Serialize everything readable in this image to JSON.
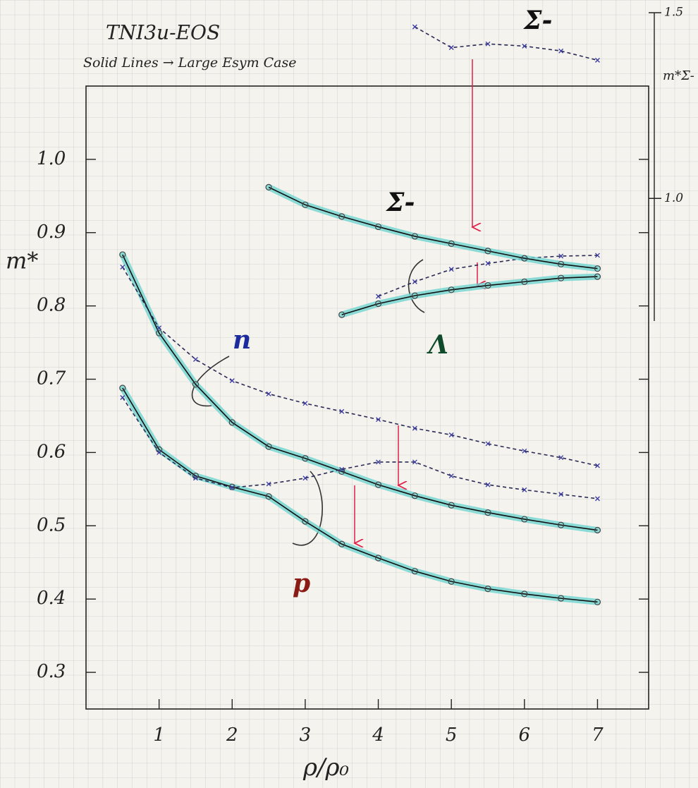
{
  "chart_data": {
    "type": "line",
    "title": "TNI3u-EOS",
    "subtitle": "Solid Lines → Large Esym Case",
    "x_label": "ρ/ρ₀",
    "y_label": "m*",
    "y2_label": "m*Σ-",
    "x": [
      0.5,
      1,
      1.5,
      2,
      2.5,
      3,
      3.5,
      4,
      4.5,
      5,
      5.5,
      6,
      6.5,
      7
    ],
    "xlim": [
      0,
      7.7
    ],
    "xticks": [
      1,
      2,
      3,
      4,
      5,
      6,
      7
    ],
    "ylim": [
      0.25,
      1.1
    ],
    "yticks": [
      0.3,
      0.4,
      0.5,
      0.6,
      0.7,
      0.8,
      0.9,
      {
        "value": 1,
        "label": "1.0"
      }
    ],
    "y2lim": [
      0.67,
      1.5
    ],
    "y2ticks": [
      {
        "value": 1,
        "label": "1.0"
      },
      {
        "value": 1.5,
        "label": "1.5"
      }
    ],
    "grid": true,
    "series": [
      {
        "name": "n",
        "color": "#111111",
        "label_color": "#1b2a9c",
        "style": "solid",
        "values": [
          0.87,
          0.763,
          0.693,
          0.641,
          0.608,
          0.592,
          0.574,
          0.556,
          0.541,
          0.528,
          0.518,
          0.509,
          0.501,
          0.494
        ]
      },
      {
        "color": "#2a2a55",
        "style": "dashed",
        "values": [
          0.853,
          0.77,
          0.727,
          0.698,
          0.68,
          0.667,
          0.656,
          0.645,
          0.633,
          0.624,
          0.612,
          0.602,
          0.593,
          0.582
        ]
      },
      {
        "name": "p",
        "color": "#111111",
        "label_color": "#8a1a14",
        "style": "solid",
        "values": [
          0.688,
          0.604,
          0.568,
          0.553,
          0.54,
          0.506,
          0.475,
          0.456,
          0.438,
          0.424,
          0.414,
          0.407,
          0.401,
          0.396
        ]
      },
      {
        "color": "#2a2a55",
        "style": "dashed",
        "values": [
          0.675,
          0.6,
          0.565,
          0.552,
          0.557,
          0.565,
          0.577,
          0.587,
          0.587,
          0.568,
          0.556,
          0.549,
          0.543,
          0.537
        ]
      },
      {
        "name": "Λ",
        "color": "#111111",
        "label_color": "#0f4a2a",
        "style": "solid",
        "values": [
          null,
          null,
          null,
          null,
          null,
          null,
          0.788,
          0.803,
          0.814,
          0.822,
          0.828,
          0.833,
          0.838,
          0.84
        ]
      },
      {
        "color": "#2a2a55",
        "style": "dashed",
        "values": [
          null,
          null,
          null,
          null,
          null,
          null,
          null,
          0.813,
          0.833,
          0.85,
          0.858,
          0.865,
          0.868,
          0.869
        ]
      },
      {
        "name": "Σ-",
        "color": "#111111",
        "label_color": "#111111",
        "style": "solid",
        "values": [
          null,
          null,
          null,
          null,
          0.962,
          0.938,
          0.922,
          0.908,
          0.895,
          0.885,
          0.875,
          0.865,
          0.857,
          0.851
        ]
      },
      {
        "name": "Σ-",
        "color": "#2a2a55",
        "label_color": "#111111",
        "style": "dashed",
        "axis": "y2",
        "values": [
          null,
          null,
          null,
          null,
          null,
          null,
          null,
          null,
          1.462,
          1.406,
          1.416,
          1.41,
          1.397,
          1.372
        ]
      }
    ]
  }
}
